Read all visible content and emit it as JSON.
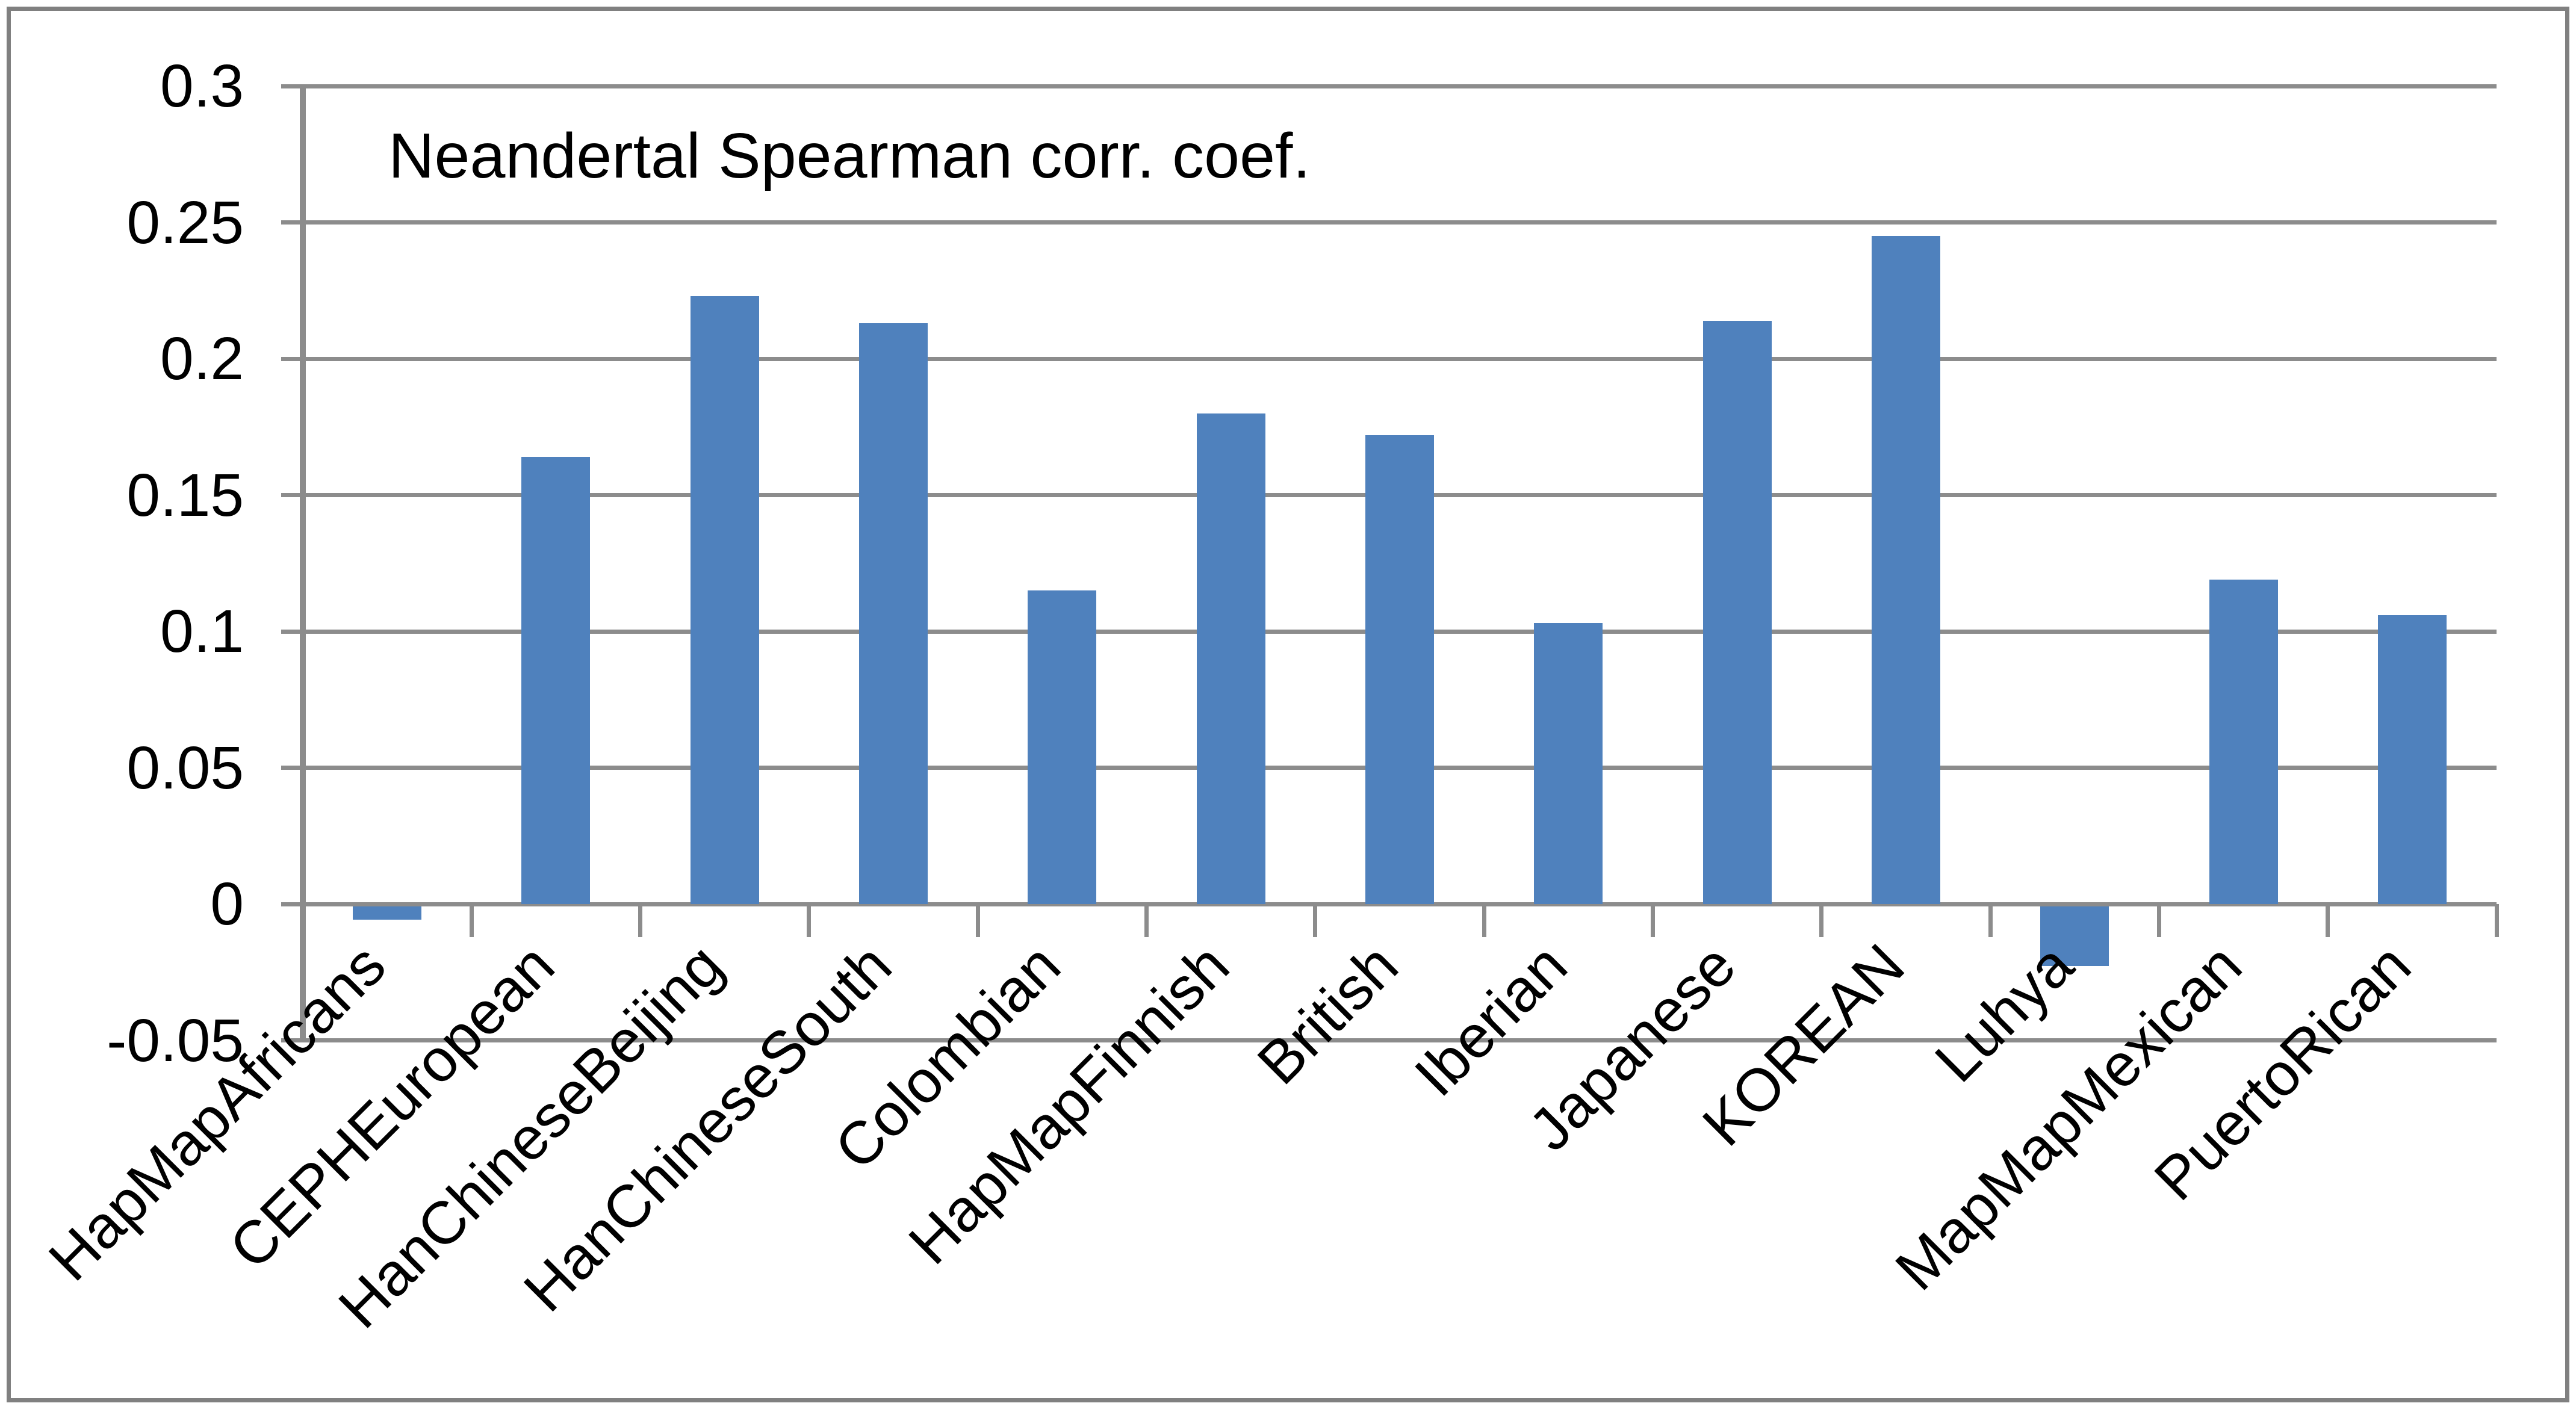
{
  "chart_data": {
    "type": "bar",
    "title": "Neandertal Spearman corr. coef.",
    "categories": [
      "HapMapAfricans",
      "CEPHEuropean",
      "HanChineseBeijing",
      "HanChineseSouth",
      "Colombian",
      "HapMapFinnish",
      "British",
      "Iberian",
      "Japanese",
      "KOREAN",
      "Luhya",
      "MapMapMexican",
      "PuertoRican"
    ],
    "values": [
      -0.005,
      0.164,
      0.223,
      0.213,
      0.115,
      0.18,
      0.172,
      0.103,
      0.214,
      0.245,
      -0.022,
      0.119,
      0.106
    ],
    "xlabel": "",
    "ylabel": "",
    "ylim": [
      -0.05,
      0.3
    ],
    "y_ticks": [
      {
        "label": "0.3",
        "value": 0.3
      },
      {
        "label": "0.25",
        "value": 0.25
      },
      {
        "label": "0.2",
        "value": 0.2
      },
      {
        "label": "0.15",
        "value": 0.15
      },
      {
        "label": "0.1",
        "value": 0.1
      },
      {
        "label": "0.05",
        "value": 0.05
      },
      {
        "label": "0",
        "value": 0
      },
      {
        "label": "-0.05",
        "value": -0.05
      }
    ],
    "x_tick_rotation": 45,
    "grid": true,
    "legend": false,
    "colors": {
      "bar": "#4F81BD",
      "gridline": "#8C8C8C",
      "axis": "#8C8C8C",
      "frame_border": "#808080",
      "text": "#000000",
      "background": "#FFFFFF"
    }
  }
}
